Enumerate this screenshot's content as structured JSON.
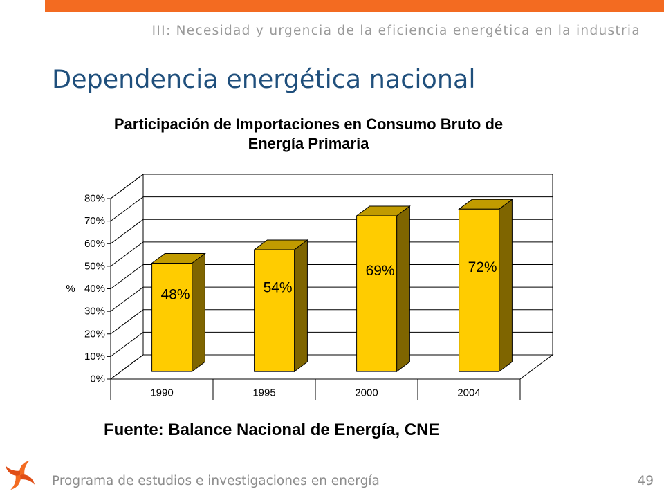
{
  "header": {
    "section": "III: Necesidad y urgencia de la eficiencia energética en la industria"
  },
  "slide": {
    "title": "Dependencia energética nacional",
    "source": "Fuente: Balance Nacional de Energía, CNE"
  },
  "footer": {
    "program": "Programa de estudios e investigaciones en energía",
    "page_number": "49"
  },
  "icons": {
    "logo": "swirl-logo-icon"
  },
  "colors": {
    "accent": "#F36B21",
    "accent_dark": "#E04E16",
    "title": "#1F4F7C",
    "bar_front": "#FFCC00",
    "bar_top": "#C19B00",
    "bar_side": "#7F6500",
    "gridline": "#000000"
  },
  "chart_data": {
    "type": "bar",
    "three_d": true,
    "title": "Participación de Importaciones en Consumo Bruto de Energía Primaria",
    "categories": [
      "1990",
      "1995",
      "2000",
      "2004"
    ],
    "values": [
      48,
      54,
      69,
      72
    ],
    "data_labels": [
      "48%",
      "54%",
      "69%",
      "72%"
    ],
    "ylabel": "%",
    "ylim": [
      0,
      80
    ],
    "yticks": [
      0,
      10,
      20,
      30,
      40,
      50,
      60,
      70,
      80
    ],
    "ytick_labels": [
      "0%",
      "10%",
      "20%",
      "30%",
      "40%",
      "50%",
      "60%",
      "70%",
      "80%"
    ],
    "grid": true,
    "legend": "none"
  }
}
